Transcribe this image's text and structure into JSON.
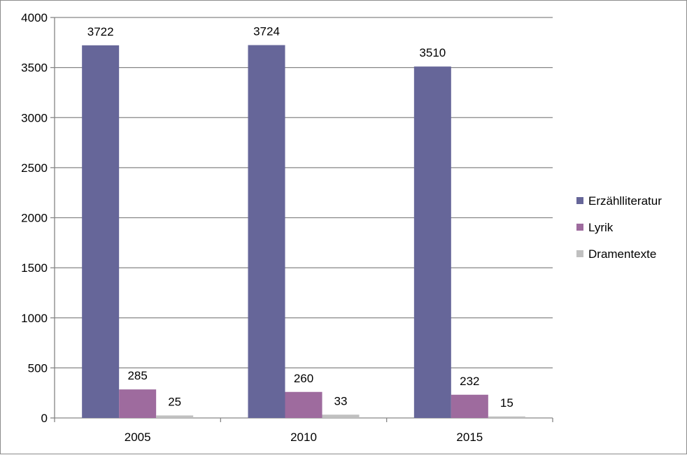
{
  "chart_data": {
    "type": "bar",
    "categories": [
      "2005",
      "2010",
      "2015"
    ],
    "series": [
      {
        "name": "Erzählliteratur",
        "values": [
          3722,
          3724,
          3510
        ],
        "color": "#666699"
      },
      {
        "name": "Lyrik",
        "values": [
          285,
          260,
          232
        ],
        "color": "#9e6b9e"
      },
      {
        "name": "Dramentexte",
        "values": [
          25,
          33,
          15
        ],
        "color": "#c0c0c0"
      }
    ],
    "ylim": [
      0,
      4000
    ],
    "yticks": [
      0,
      500,
      1000,
      1500,
      2000,
      2500,
      3000,
      3500,
      4000
    ],
    "grid": true,
    "legend_position": "right",
    "title": "",
    "xlabel": "",
    "ylabel": ""
  }
}
